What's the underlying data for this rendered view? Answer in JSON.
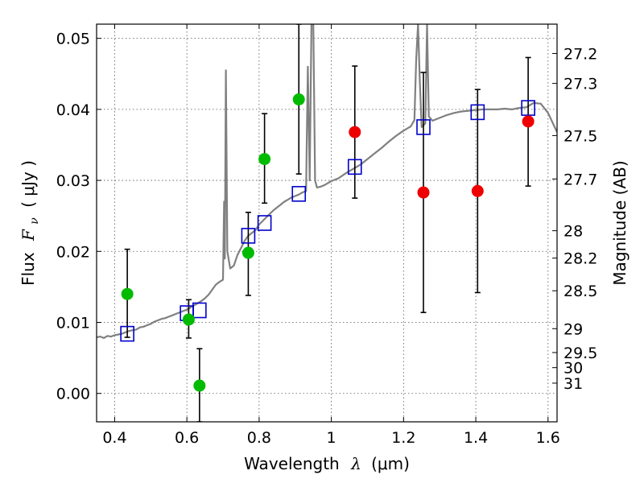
{
  "chart_data": {
    "type": "scatter",
    "xlabel": "Wavelength",
    "xlabel_symbol": "λ",
    "xlabel_unit": "(μm)",
    "ylabel": "Flux",
    "ylabel_symbol": "F",
    "ylabel_symbol_sub": "ν",
    "ylabel_unit": "( μJy )",
    "y2label": "Magnitude (AB)",
    "xlim": [
      0.35,
      1.625
    ],
    "ylim": [
      -0.004,
      0.052
    ],
    "grid": true,
    "x_ticks": [
      0.4,
      0.6,
      0.8,
      1.0,
      1.2,
      1.4,
      1.6
    ],
    "x_tick_labels": [
      "0.4",
      "0.6",
      "0.8",
      "1",
      "1.2",
      "1.4",
      "1.6"
    ],
    "y_ticks": [
      0.0,
      0.01,
      0.02,
      0.03,
      0.04,
      0.05
    ],
    "y_tick_labels": [
      "0.00",
      "0.01",
      "0.02",
      "0.03",
      "0.04",
      "0.05"
    ],
    "mag_ticks": [
      27.2,
      27.3,
      27.5,
      27.7,
      28,
      28.2,
      28.5,
      29,
      29.5,
      30,
      31
    ],
    "mag_tick_labels": [
      "27.2",
      "27.3",
      "27.5",
      "27.7",
      "28",
      "28.2",
      "28.5",
      "29",
      "29.5",
      "30",
      "31"
    ],
    "colors": {
      "spectrum": "#808080",
      "green": "#00bb00",
      "red": "#ee0000",
      "model": "#0000cc",
      "errorbar": "#000000"
    },
    "series": [
      {
        "marker": "line",
        "color": "#808080",
        "points": [
          [
            0.35,
            0.0079
          ],
          [
            0.36,
            0.008
          ],
          [
            0.37,
            0.0078
          ],
          [
            0.38,
            0.0081
          ],
          [
            0.39,
            0.008
          ],
          [
            0.4,
            0.0082
          ],
          [
            0.41,
            0.0083
          ],
          [
            0.42,
            0.0084
          ],
          [
            0.43,
            0.0086
          ],
          [
            0.44,
            0.0088
          ],
          [
            0.45,
            0.0089
          ],
          [
            0.46,
            0.009
          ],
          [
            0.47,
            0.0093
          ],
          [
            0.48,
            0.0094
          ],
          [
            0.49,
            0.0096
          ],
          [
            0.5,
            0.0098
          ],
          [
            0.51,
            0.0101
          ],
          [
            0.52,
            0.0103
          ],
          [
            0.53,
            0.0105
          ],
          [
            0.54,
            0.0106
          ],
          [
            0.55,
            0.0108
          ],
          [
            0.56,
            0.011
          ],
          [
            0.57,
            0.0112
          ],
          [
            0.58,
            0.0114
          ],
          [
            0.59,
            0.0116
          ],
          [
            0.6,
            0.0118
          ],
          [
            0.61,
            0.0121
          ],
          [
            0.62,
            0.0124
          ],
          [
            0.63,
            0.0127
          ],
          [
            0.64,
            0.013
          ],
          [
            0.65,
            0.0134
          ],
          [
            0.66,
            0.0139
          ],
          [
            0.67,
            0.0146
          ],
          [
            0.68,
            0.0153
          ],
          [
            0.69,
            0.0157
          ],
          [
            0.7,
            0.016
          ],
          [
            0.703,
            0.027
          ],
          [
            0.705,
            0.019
          ],
          [
            0.708,
            0.0455
          ],
          [
            0.712,
            0.02
          ],
          [
            0.72,
            0.0176
          ],
          [
            0.73,
            0.018
          ],
          [
            0.74,
            0.0195
          ],
          [
            0.75,
            0.0205
          ],
          [
            0.76,
            0.0215
          ],
          [
            0.77,
            0.0222
          ],
          [
            0.78,
            0.0226
          ],
          [
            0.79,
            0.023
          ],
          [
            0.8,
            0.0238
          ],
          [
            0.81,
            0.0243
          ],
          [
            0.82,
            0.0248
          ],
          [
            0.83,
            0.0253
          ],
          [
            0.84,
            0.0258
          ],
          [
            0.85,
            0.0262
          ],
          [
            0.86,
            0.0266
          ],
          [
            0.87,
            0.027
          ],
          [
            0.88,
            0.0273
          ],
          [
            0.89,
            0.0276
          ],
          [
            0.9,
            0.0278
          ],
          [
            0.91,
            0.028
          ],
          [
            0.92,
            0.0283
          ],
          [
            0.93,
            0.0285
          ],
          [
            0.935,
            0.046
          ],
          [
            0.94,
            0.03
          ],
          [
            0.945,
            0.052
          ],
          [
            0.95,
            0.052
          ],
          [
            0.955,
            0.03
          ],
          [
            0.96,
            0.029
          ],
          [
            0.97,
            0.0291
          ],
          [
            0.98,
            0.0293
          ],
          [
            0.99,
            0.0296
          ],
          [
            1.0,
            0.0299
          ],
          [
            1.02,
            0.0303
          ],
          [
            1.04,
            0.031
          ],
          [
            1.06,
            0.0316
          ],
          [
            1.08,
            0.0322
          ],
          [
            1.1,
            0.033
          ],
          [
            1.12,
            0.0338
          ],
          [
            1.14,
            0.0346
          ],
          [
            1.16,
            0.0355
          ],
          [
            1.18,
            0.0363
          ],
          [
            1.2,
            0.037
          ],
          [
            1.22,
            0.0376
          ],
          [
            1.23,
            0.0385
          ],
          [
            1.235,
            0.047
          ],
          [
            1.24,
            0.052
          ],
          [
            1.245,
            0.044
          ],
          [
            1.25,
            0.0375
          ],
          [
            1.26,
            0.038
          ],
          [
            1.265,
            0.052
          ],
          [
            1.27,
            0.039
          ],
          [
            1.28,
            0.0384
          ],
          [
            1.3,
            0.0388
          ],
          [
            1.32,
            0.0392
          ],
          [
            1.34,
            0.0395
          ],
          [
            1.36,
            0.0397
          ],
          [
            1.38,
            0.0398
          ],
          [
            1.4,
            0.0399
          ],
          [
            1.42,
            0.04
          ],
          [
            1.44,
            0.04
          ],
          [
            1.46,
            0.04
          ],
          [
            1.48,
            0.0401
          ],
          [
            1.5,
            0.04
          ],
          [
            1.52,
            0.0402
          ],
          [
            1.54,
            0.0403
          ],
          [
            1.56,
            0.0409
          ],
          [
            1.58,
            0.0408
          ],
          [
            1.6,
            0.0395
          ],
          [
            1.625,
            0.0368
          ]
        ]
      },
      {
        "marker": "circle",
        "color": "#00bb00",
        "points": [
          {
            "x": 0.435,
            "y": 0.014,
            "err_low": 0.0079,
            "err_high": 0.0203
          },
          {
            "x": 0.605,
            "y": 0.0104,
            "err_low": 0.0078,
            "err_high": 0.0132
          },
          {
            "x": 0.635,
            "y": 0.0011,
            "err_low": -0.004,
            "err_high": 0.0063
          },
          {
            "x": 0.77,
            "y": 0.0198,
            "err_low": 0.0138,
            "err_high": 0.0255
          },
          {
            "x": 0.815,
            "y": 0.033,
            "err_low": 0.0268,
            "err_high": 0.0394
          },
          {
            "x": 0.91,
            "y": 0.0414,
            "err_low": 0.0309,
            "err_high": 0.052
          }
        ]
      },
      {
        "marker": "circle",
        "color": "#ee0000",
        "points": [
          {
            "x": 1.065,
            "y": 0.0368,
            "err_low": 0.0275,
            "err_high": 0.0461
          },
          {
            "x": 1.255,
            "y": 0.0283,
            "err_low": 0.0114,
            "err_high": 0.0452
          },
          {
            "x": 1.405,
            "y": 0.0285,
            "err_low": 0.0142,
            "err_high": 0.0428
          },
          {
            "x": 1.545,
            "y": 0.0383,
            "err_low": 0.0292,
            "err_high": 0.0473
          }
        ]
      },
      {
        "marker": "square",
        "color": "#0000cc",
        "points": [
          {
            "x": 0.435,
            "y": 0.0084
          },
          {
            "x": 0.6,
            "y": 0.0113
          },
          {
            "x": 0.635,
            "y": 0.0117
          },
          {
            "x": 0.77,
            "y": 0.0222
          },
          {
            "x": 0.815,
            "y": 0.024
          },
          {
            "x": 0.91,
            "y": 0.0281
          },
          {
            "x": 1.065,
            "y": 0.0319
          },
          {
            "x": 1.255,
            "y": 0.0375
          },
          {
            "x": 1.405,
            "y": 0.0396
          },
          {
            "x": 1.545,
            "y": 0.0402
          }
        ]
      }
    ]
  }
}
